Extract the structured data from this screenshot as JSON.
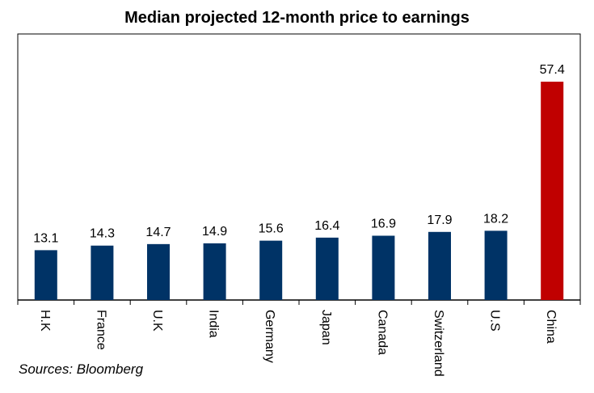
{
  "chart_data": {
    "type": "bar",
    "title": "Median projected 12-month price to earnings",
    "categories": [
      "H.K",
      "France",
      "U.K",
      "India",
      "Germany",
      "Japan",
      "Canada",
      "Switzerland",
      "U.S",
      "China"
    ],
    "values": [
      13.1,
      14.3,
      14.7,
      14.9,
      15.6,
      16.4,
      16.9,
      17.9,
      18.2,
      57.4
    ],
    "ylim": [
      0,
      60
    ],
    "grid": false,
    "legend": "none",
    "data_labels": true,
    "colors": {
      "default": "#003366",
      "highlight": "#C00000"
    },
    "highlight_category": "China"
  },
  "source_note": "Sources: Bloomberg"
}
